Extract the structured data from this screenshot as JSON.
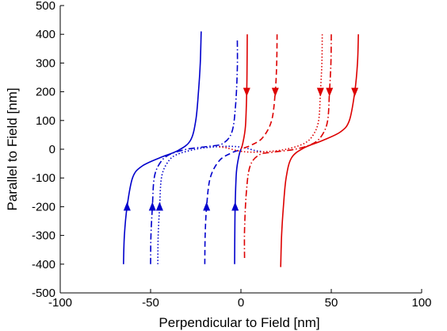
{
  "chart_data": {
    "type": "line",
    "title": "",
    "xlabel": "Perpendicular to Field [nm]",
    "ylabel": "Parallel to Field [nm]",
    "xlim": [
      -100,
      100
    ],
    "ylim": [
      -500,
      500
    ],
    "xticks": [
      "-100",
      "-50",
      "0",
      "50",
      "100"
    ],
    "yticks": [
      "500",
      "400",
      "300",
      "200",
      "100",
      "0",
      "-100",
      "-200",
      "-300",
      "-400",
      "-500"
    ],
    "grid": false,
    "legend": "none",
    "colors": {
      "blue": "#0000cc",
      "red": "#dd0000"
    },
    "series": [
      {
        "color": "blue",
        "style": "solid",
        "arrow": "up",
        "x": [
          -65,
          -64.5,
          -63,
          -60,
          -55,
          -45,
          -35,
          -28,
          -25,
          -23.5,
          -22.5,
          -22
        ],
        "y": [
          -400,
          -300,
          -200,
          -100,
          -60,
          -30,
          -5,
          30,
          100,
          200,
          300,
          410
        ]
      },
      {
        "color": "blue",
        "style": "dashdot",
        "arrow": "up",
        "x": [
          -50,
          -49.8,
          -49,
          -48,
          -45,
          -40,
          -30,
          -18,
          -10,
          -5,
          -3,
          -2,
          -2
        ],
        "y": [
          -400,
          -300,
          -200,
          -100,
          -50,
          -20,
          0,
          10,
          20,
          60,
          150,
          280,
          380
        ]
      },
      {
        "color": "blue",
        "style": "dotted",
        "arrow": "up",
        "x": [
          -46,
          -45.8,
          -45,
          -44,
          -41,
          -36,
          -25,
          -15,
          -5,
          2,
          8,
          12
        ],
        "y": [
          -400,
          -300,
          -200,
          -100,
          -50,
          -20,
          0,
          8,
          10,
          5,
          -5,
          -8
        ]
      },
      {
        "color": "blue",
        "style": "dashed",
        "arrow": "up",
        "x": [
          -20,
          -19.8,
          -19,
          -17,
          -12,
          -6,
          -2,
          0
        ],
        "y": [
          -400,
          -300,
          -200,
          -100,
          -40,
          -15,
          -5,
          0
        ]
      },
      {
        "color": "blue",
        "style": "solid",
        "arrow": "up",
        "x": [
          -3.5,
          -3.4,
          -3.2,
          -2.5,
          -1,
          0
        ],
        "y": [
          -400,
          -300,
          -200,
          -80,
          -20,
          0
        ]
      },
      {
        "color": "red",
        "style": "solid",
        "arrow": "down",
        "x": [
          3.5,
          3.4,
          3.2,
          2.5,
          1,
          0
        ],
        "y": [
          400,
          300,
          200,
          80,
          20,
          0
        ]
      },
      {
        "color": "red",
        "style": "dashed",
        "arrow": "down",
        "x": [
          20,
          19.8,
          19,
          17,
          12,
          6,
          2,
          0
        ],
        "y": [
          400,
          300,
          200,
          100,
          40,
          15,
          5,
          0
        ]
      },
      {
        "color": "red",
        "style": "dotted",
        "arrow": "down",
        "x": [
          45,
          44.8,
          44,
          43,
          40,
          35,
          25,
          15,
          5,
          -2,
          -8,
          -12
        ],
        "y": [
          400,
          300,
          200,
          100,
          50,
          20,
          0,
          -8,
          -10,
          -5,
          5,
          8
        ]
      },
      {
        "color": "red",
        "style": "dashdot",
        "arrow": "down",
        "x": [
          50,
          49.8,
          49,
          48,
          45,
          40,
          30,
          18,
          10,
          5,
          3,
          2,
          2
        ],
        "y": [
          400,
          300,
          200,
          100,
          50,
          20,
          0,
          -10,
          -20,
          -60,
          -150,
          -280,
          -380
        ]
      },
      {
        "color": "red",
        "style": "solid",
        "arrow": "down",
        "x": [
          65,
          64.5,
          63,
          60,
          55,
          45,
          35,
          28,
          25,
          23.5,
          22.5,
          22
        ],
        "y": [
          400,
          300,
          200,
          100,
          60,
          30,
          5,
          -30,
          -100,
          -200,
          -300,
          -410
        ]
      }
    ]
  }
}
